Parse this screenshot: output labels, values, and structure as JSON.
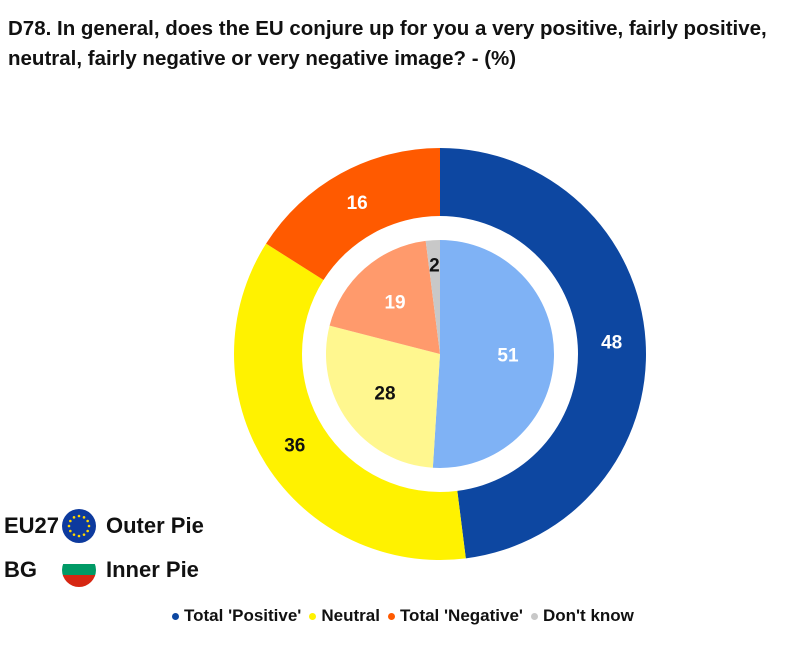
{
  "title": "D78. In general, does the EU conjure up for you a very positive, fairly positive, neutral, fairly negative or very negative image? - (%)",
  "colors": {
    "outer": [
      "#0d47a1",
      "#fff200",
      "#ff5a00",
      "#c8c8c8"
    ],
    "inner": [
      "#7fb2f5",
      "#fff78f",
      "#ff9a6c",
      "#c8c8c8"
    ],
    "eu_flag": "#0d3a9e",
    "eu_stars": "#ffd700",
    "bg_flag": [
      "#ffffff",
      "#009a66",
      "#d62612"
    ]
  },
  "side_legend": [
    {
      "code": "EU27",
      "label": "Outer Pie",
      "flag": "eu-flag-icon"
    },
    {
      "code": "BG",
      "label": "Inner Pie",
      "flag": "bulgaria-flag-icon"
    }
  ],
  "chart_data": {
    "type": "pie",
    "categories": [
      "Total 'Positive'",
      "Neutral",
      "Total 'Negative'",
      "Don't know"
    ],
    "series": [
      {
        "name": "EU27",
        "values": [
          48,
          36,
          16,
          0
        ]
      },
      {
        "name": "BG",
        "values": [
          51,
          28,
          19,
          2
        ]
      }
    ]
  }
}
